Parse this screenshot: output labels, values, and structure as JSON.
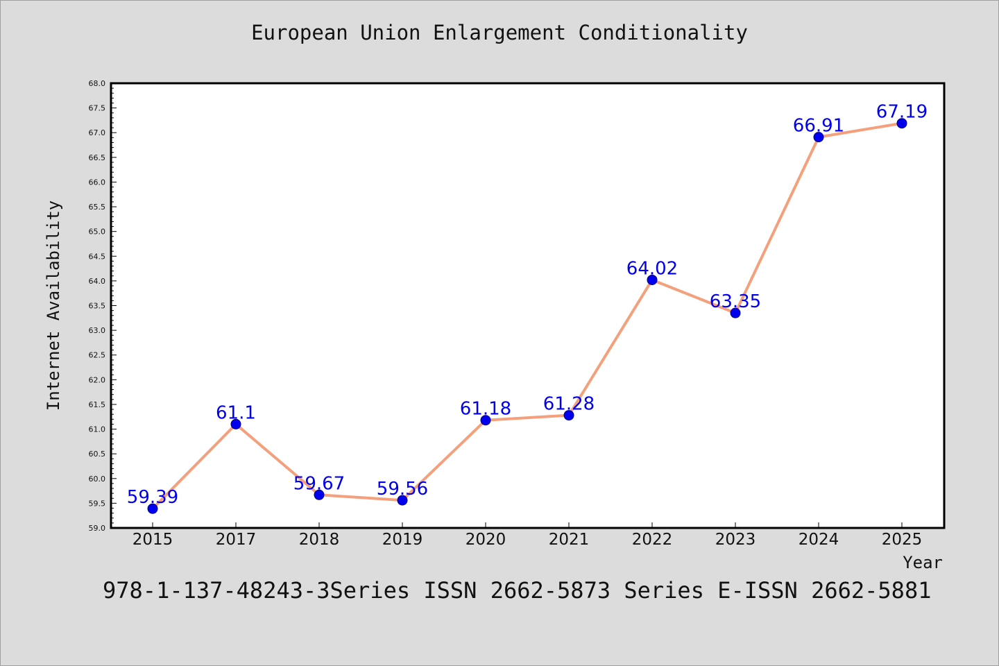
{
  "chart_data": {
    "type": "line",
    "title": "European Union Enlargement Conditionality",
    "xlabel": "Year",
    "ylabel": "Internet Availability",
    "categories": [
      "2015",
      "2017",
      "2018",
      "2019",
      "2020",
      "2021",
      "2022",
      "2023",
      "2024",
      "2025"
    ],
    "series": [
      {
        "values": [
          59.39,
          61.1,
          59.67,
          59.56,
          61.18,
          61.28,
          64.02,
          63.35,
          66.91,
          67.19
        ]
      }
    ],
    "data_labels": [
      "59.39",
      "61.1",
      "59.67",
      "59.56",
      "61.18",
      "61.28",
      "64.02",
      "63.35",
      "66.91",
      "67.19"
    ],
    "ylim": [
      59.0,
      68.0
    ],
    "y_ticks": [
      "59.0",
      "59.5",
      "60.0",
      "60.5",
      "61.0",
      "61.5",
      "62.0",
      "62.5",
      "63.0",
      "63.5",
      "64.0",
      "64.5",
      "65.0",
      "65.5",
      "66.0",
      "66.5",
      "67.0",
      "67.5",
      "68.0"
    ],
    "grid": false,
    "legend": "none",
    "colors": {
      "line": "#f4a07c",
      "marker": "#0000ee",
      "marker_edge": "#000080",
      "label": "#0000ee",
      "background": "#dcdcdc",
      "plot_background": "#ffffff"
    }
  },
  "footer": {
    "note": "978-1-137-48243-3Series ISSN 2662-5873 Series E-ISSN 2662-5881"
  }
}
